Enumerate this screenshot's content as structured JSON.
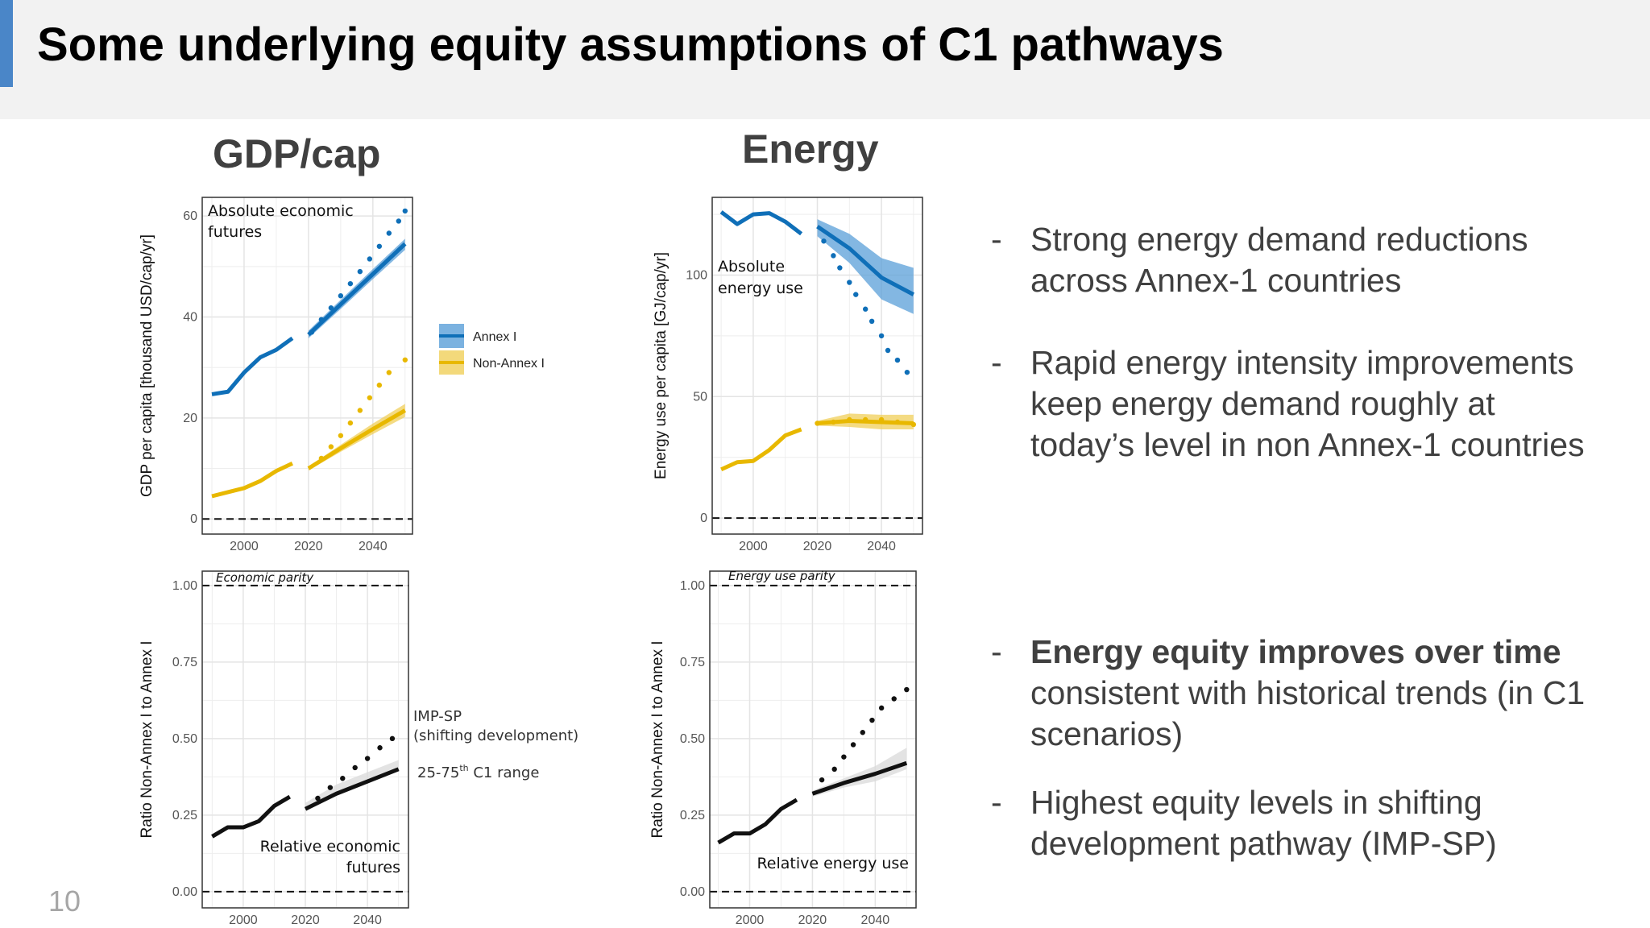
{
  "header": {
    "title": "Some underlying equity assumptions of C1 pathways"
  },
  "sections": {
    "gdp": "GDP/cap",
    "energy": "Energy"
  },
  "legend": [
    {
      "label": "Annex I",
      "color": "#0f6fb8"
    },
    {
      "label": "Non-Annex I",
      "color": "#e8b800"
    }
  ],
  "annotations": {
    "imp_sp": "IMP-SP",
    "imp_sp_sub": "(shifting development)",
    "range_pre": "25-75",
    "range_sup": "th",
    "range_post": " C1 range"
  },
  "bullets": [
    {
      "bold": "",
      "lines": [
        "Strong energy demand reductions",
        "across Annex-1 countries"
      ]
    },
    {
      "bold": "",
      "lines": [
        "Rapid energy intensity improvements",
        "keep energy demand roughly at",
        "today’s level in non Annex-1 countries"
      ]
    },
    {
      "bold": "Energy equity improves over time",
      "lines": [
        "consistent with historical trends (in C1",
        "scenarios)"
      ]
    },
    {
      "bold": "",
      "lines": [
        "Highest equity levels in shifting",
        "development pathway (IMP-SP)"
      ]
    }
  ],
  "page_number": "10",
  "colors": {
    "annex": "#0f6fb8",
    "annex_band": "#5a9fd8",
    "nonannex": "#e8b800",
    "nonannex_band": "#f0cf5a",
    "ratio": "#111111",
    "ratio_band": "#d9d9d9"
  },
  "chart_data": [
    {
      "id": "gdp_abs",
      "type": "line",
      "ylabel": "GDP per capita [thousand USD/cap/yr]",
      "xlim": [
        1987,
        2052.3
      ],
      "ylim": [
        -3,
        63.7
      ],
      "xticks": [
        2000,
        2020,
        2040
      ],
      "yticks": [
        0,
        20,
        40,
        60
      ],
      "xtick_labels": [
        "2000",
        "2020",
        "2040"
      ],
      "ytick_labels": [
        "0",
        "20",
        "40",
        "60"
      ],
      "annotations": [
        "Absolute economic",
        "futures"
      ],
      "series": [
        {
          "name": "Annex I historical",
          "color": "annex",
          "x": [
            1990,
            1995,
            2000,
            2005,
            2010,
            2015
          ],
          "y": [
            24.7,
            25.2,
            29,
            32,
            33.5,
            35.8
          ]
        },
        {
          "name": "Annex I C1 median",
          "color": "annex",
          "x": [
            2020,
            2030,
            2040,
            2050
          ],
          "y": [
            36.5,
            42.5,
            48.5,
            54.5
          ],
          "band_low": [
            35.8,
            41.6,
            47.5,
            53.3
          ],
          "band_high": [
            37.3,
            43.4,
            49.5,
            55.5
          ]
        },
        {
          "name": "Annex I IMP-SP",
          "color": "annex",
          "dotted": true,
          "x": [
            2021,
            2024,
            2027,
            2030,
            2033,
            2036,
            2039,
            2042,
            2045,
            2048,
            2050
          ],
          "y": [
            37,
            39.5,
            41.8,
            44.2,
            46.6,
            49,
            51.5,
            54,
            56.6,
            59,
            61
          ]
        },
        {
          "name": "Non-Annex I historical",
          "color": "nonannex",
          "x": [
            1990,
            1995,
            2000,
            2005,
            2010,
            2015
          ],
          "y": [
            4.5,
            5.3,
            6.1,
            7.5,
            9.5,
            11
          ]
        },
        {
          "name": "Non-Annex I C1 median",
          "color": "nonannex",
          "x": [
            2020,
            2030,
            2040,
            2050
          ],
          "y": [
            10,
            14,
            17.8,
            21.5
          ],
          "band_low": [
            9.6,
            13.3,
            16.8,
            20.2
          ],
          "band_high": [
            10.4,
            14.7,
            18.9,
            22.8
          ]
        },
        {
          "name": "Non-Annex I IMP-SP",
          "color": "nonannex",
          "dotted": true,
          "x": [
            2024,
            2027,
            2030,
            2033,
            2036,
            2039,
            2042,
            2045,
            2050
          ],
          "y": [
            12,
            14.3,
            16.5,
            19,
            21.5,
            24,
            26.5,
            29,
            31.5
          ]
        }
      ]
    },
    {
      "id": "energy_abs",
      "type": "line",
      "ylabel": "Energy use per capita [GJ/cap/yr]",
      "xlim": [
        1987.2,
        2052.8
      ],
      "ylim": [
        -6.6,
        132
      ],
      "xticks": [
        2000,
        2020,
        2040
      ],
      "yticks": [
        0,
        50,
        100
      ],
      "xtick_labels": [
        "2000",
        "2020",
        "2040"
      ],
      "ytick_labels": [
        "0",
        "50",
        "100"
      ],
      "annotations": [
        "Absolute",
        "energy use"
      ],
      "series": [
        {
          "name": "Annex I historical",
          "color": "annex",
          "x": [
            1990,
            1995,
            2000,
            2005,
            2010,
            2015
          ],
          "y": [
            126,
            121,
            125,
            125.5,
            122,
            117
          ]
        },
        {
          "name": "Annex I C1 median",
          "color": "annex",
          "x": [
            2020,
            2030,
            2040,
            2050
          ],
          "y": [
            120,
            111,
            99,
            92
          ],
          "band_low": [
            116,
            105,
            90,
            84
          ],
          "band_high": [
            123,
            117,
            107,
            103
          ]
        },
        {
          "name": "Annex I IMP-SP",
          "color": "annex",
          "dotted": true,
          "x": [
            2022,
            2025,
            2027,
            2030,
            2032,
            2035,
            2037,
            2040,
            2042,
            2045,
            2048
          ],
          "y": [
            114,
            108,
            103,
            97,
            92,
            86,
            81,
            75,
            69,
            65,
            60
          ]
        },
        {
          "name": "Non-Annex I historical",
          "color": "nonannex",
          "x": [
            1990,
            1995,
            2000,
            2005,
            2010,
            2015
          ],
          "y": [
            20,
            23,
            23.5,
            28,
            34,
            36.5
          ]
        },
        {
          "name": "Non-Annex I C1 median",
          "color": "nonannex",
          "x": [
            2020,
            2030,
            2040,
            2050
          ],
          "y": [
            39,
            40,
            39.5,
            39
          ],
          "band_low": [
            38,
            37.5,
            36.5,
            36.5
          ],
          "band_high": [
            40,
            43,
            42.5,
            42.5
          ]
        },
        {
          "name": "Non-Annex I IMP-SP",
          "color": "nonannex",
          "dotted": true,
          "x": [
            2020,
            2025,
            2030,
            2035,
            2040,
            2045,
            2050
          ],
          "y": [
            39,
            39.5,
            40.5,
            40.5,
            40.5,
            39.5,
            38.5
          ]
        }
      ]
    },
    {
      "id": "gdp_ratio",
      "type": "line",
      "ylabel": "Ratio Non-Annex I to Annex I",
      "xlim": [
        1986.8,
        2053.2
      ],
      "ylim": [
        -0.053,
        1.047
      ],
      "xticks": [
        2000,
        2020,
        2040
      ],
      "yticks": [
        0,
        0.25,
        0.5,
        0.75,
        1
      ],
      "xtick_labels": [
        "2000",
        "2020",
        "2040"
      ],
      "ytick_labels": [
        "0.00",
        "0.25",
        "0.50",
        "0.75",
        "1.00"
      ],
      "annotations": [
        "Economic parity",
        "Relative economic",
        "futures"
      ],
      "series": [
        {
          "name": "Historical",
          "color": "ratio",
          "x": [
            1990,
            1995,
            2000,
            2005,
            2010,
            2015
          ],
          "y": [
            0.18,
            0.21,
            0.21,
            0.23,
            0.28,
            0.31
          ]
        },
        {
          "name": "C1 median",
          "color": "ratio",
          "x": [
            2020,
            2030,
            2040,
            2050
          ],
          "y": [
            0.27,
            0.32,
            0.36,
            0.4
          ],
          "band_low": [
            0.27,
            0.32,
            0.36,
            0.4
          ],
          "band_high": [
            0.29,
            0.35,
            0.39,
            0.43
          ]
        },
        {
          "name": "IMP-SP",
          "color": "ratio",
          "dotted": true,
          "x": [
            2024,
            2028,
            2032,
            2036,
            2040,
            2044,
            2048
          ],
          "y": [
            0.305,
            0.34,
            0.37,
            0.405,
            0.435,
            0.47,
            0.5
          ]
        }
      ]
    },
    {
      "id": "energy_ratio",
      "type": "line",
      "ylabel": "Ratio Non-Annex I to Annex I",
      "xlim": [
        1987.3,
        2053
      ],
      "ylim": [
        -0.053,
        1.047
      ],
      "xticks": [
        2000,
        2020,
        2040
      ],
      "yticks": [
        0,
        0.25,
        0.5,
        0.75,
        1
      ],
      "xtick_labels": [
        "2000",
        "2020",
        "2040"
      ],
      "ytick_labels": [
        "0.00",
        "0.25",
        "0.50",
        "0.75",
        "1.00"
      ],
      "annotations": [
        "Energy use parity",
        "Relative energy use"
      ],
      "series": [
        {
          "name": "Historical",
          "color": "ratio",
          "x": [
            1990,
            1995,
            2000,
            2005,
            2010,
            2015
          ],
          "y": [
            0.16,
            0.19,
            0.19,
            0.22,
            0.27,
            0.3
          ]
        },
        {
          "name": "C1 median",
          "color": "ratio",
          "x": [
            2020,
            2030,
            2040,
            2050
          ],
          "y": [
            0.32,
            0.355,
            0.385,
            0.42
          ],
          "band_low": [
            0.31,
            0.34,
            0.36,
            0.4
          ],
          "band_high": [
            0.33,
            0.37,
            0.41,
            0.47
          ]
        },
        {
          "name": "IMP-SP",
          "color": "ratio",
          "dotted": true,
          "x": [
            2023,
            2027,
            2030,
            2033,
            2036,
            2039,
            2042,
            2046,
            2050
          ],
          "y": [
            0.365,
            0.4,
            0.44,
            0.48,
            0.52,
            0.56,
            0.6,
            0.63,
            0.66
          ]
        }
      ]
    }
  ]
}
